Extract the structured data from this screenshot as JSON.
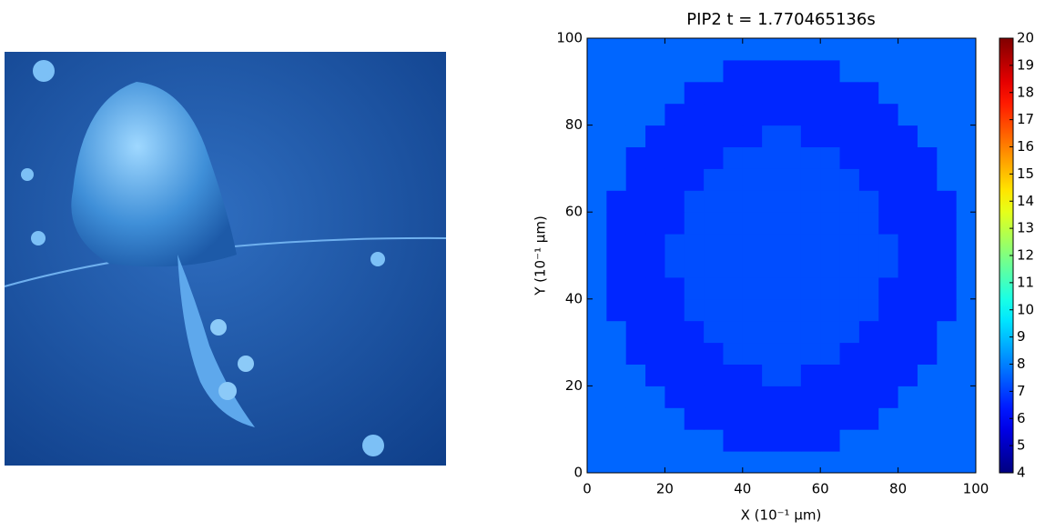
{
  "chart_data": {
    "type": "heatmap",
    "title": "PIP2  t = 1.770465136s",
    "x_label": "X (10⁻¹ μm)",
    "y_label": "Y (10⁻¹ μm)",
    "colormap": "jet",
    "xlim": [
      0,
      100
    ],
    "ylim": [
      0,
      100
    ],
    "xticks": [
      0,
      20,
      40,
      60,
      80,
      100
    ],
    "yticks": [
      0,
      20,
      40,
      60,
      80,
      100
    ],
    "colorbar": {
      "lim": [
        4,
        20
      ],
      "ticks": [
        4,
        5,
        6,
        7,
        8,
        9,
        10,
        11,
        12,
        13,
        14,
        15,
        16,
        17,
        18,
        19,
        20
      ]
    },
    "z": [
      [
        7.6,
        7.6,
        7.6,
        7.6,
        7.6,
        7.6,
        7.6,
        7.6,
        7.6,
        7.6,
        7.6,
        7.6,
        7.6,
        7.6,
        7.6,
        7.6,
        7.6,
        7.6,
        7.6,
        7.6
      ],
      [
        7.6,
        7.6,
        7.6,
        7.6,
        7.6,
        7.6,
        7.6,
        6.6,
        6.6,
        6.6,
        6.6,
        6.6,
        6.6,
        7.6,
        7.6,
        7.6,
        7.6,
        7.6,
        7.6,
        7.6
      ],
      [
        7.6,
        7.6,
        7.6,
        7.6,
        7.6,
        6.6,
        6.6,
        6.6,
        6.6,
        6.6,
        6.6,
        6.6,
        6.6,
        6.6,
        6.6,
        7.6,
        7.6,
        7.6,
        7.6,
        7.6
      ],
      [
        7.6,
        7.6,
        7.6,
        7.6,
        6.6,
        6.6,
        6.6,
        6.6,
        6.6,
        6.6,
        6.6,
        6.6,
        6.6,
        6.6,
        6.6,
        6.6,
        7.6,
        7.6,
        7.6,
        7.6
      ],
      [
        7.6,
        7.6,
        7.6,
        6.6,
        6.6,
        6.6,
        6.6,
        6.6,
        6.6,
        7.2,
        7.2,
        6.6,
        6.6,
        6.6,
        6.6,
        6.6,
        6.6,
        7.6,
        7.6,
        7.6
      ],
      [
        7.6,
        7.6,
        6.6,
        6.6,
        6.6,
        6.6,
        6.6,
        7.2,
        7.2,
        7.2,
        7.2,
        7.2,
        7.2,
        6.6,
        6.6,
        6.6,
        6.6,
        6.6,
        7.6,
        7.6
      ],
      [
        7.6,
        7.6,
        6.6,
        6.6,
        6.6,
        6.6,
        7.2,
        7.2,
        7.2,
        7.2,
        7.2,
        7.2,
        7.2,
        7.2,
        6.6,
        6.6,
        6.6,
        6.6,
        7.6,
        7.6
      ],
      [
        7.6,
        6.6,
        6.6,
        6.6,
        6.6,
        7.2,
        7.2,
        7.2,
        7.2,
        7.2,
        7.2,
        7.2,
        7.2,
        7.2,
        7.2,
        6.6,
        6.6,
        6.6,
        6.6,
        7.6
      ],
      [
        7.6,
        6.6,
        6.6,
        6.6,
        6.6,
        7.2,
        7.2,
        7.2,
        7.2,
        7.2,
        7.2,
        7.2,
        7.2,
        7.2,
        7.2,
        6.6,
        6.6,
        6.6,
        6.6,
        7.6
      ],
      [
        7.6,
        6.6,
        6.6,
        6.6,
        7.2,
        7.2,
        7.2,
        7.2,
        7.2,
        7.2,
        7.2,
        7.2,
        7.2,
        7.2,
        7.2,
        7.2,
        6.6,
        6.6,
        6.6,
        7.6
      ],
      [
        7.6,
        6.6,
        6.6,
        6.6,
        7.2,
        7.2,
        7.2,
        7.2,
        7.2,
        7.2,
        7.2,
        7.2,
        7.2,
        7.2,
        7.2,
        7.2,
        6.6,
        6.6,
        6.6,
        7.6
      ],
      [
        7.6,
        6.6,
        6.6,
        6.6,
        6.6,
        7.2,
        7.2,
        7.2,
        7.2,
        7.2,
        7.2,
        7.2,
        7.2,
        7.2,
        7.2,
        6.6,
        6.6,
        6.6,
        6.6,
        7.6
      ],
      [
        7.6,
        6.6,
        6.6,
        6.6,
        6.6,
        7.2,
        7.2,
        7.2,
        7.2,
        7.2,
        7.2,
        7.2,
        7.2,
        7.2,
        7.2,
        6.6,
        6.6,
        6.6,
        6.6,
        7.6
      ],
      [
        7.6,
        7.6,
        6.6,
        6.6,
        6.6,
        6.6,
        7.2,
        7.2,
        7.2,
        7.2,
        7.2,
        7.2,
        7.2,
        7.2,
        6.6,
        6.6,
        6.6,
        6.6,
        7.6,
        7.6
      ],
      [
        7.6,
        7.6,
        6.6,
        6.6,
        6.6,
        6.6,
        6.6,
        7.2,
        7.2,
        7.2,
        7.2,
        7.2,
        7.2,
        6.6,
        6.6,
        6.6,
        6.6,
        6.6,
        7.6,
        7.6
      ],
      [
        7.6,
        7.6,
        7.6,
        6.6,
        6.6,
        6.6,
        6.6,
        6.6,
        6.6,
        7.2,
        7.2,
        6.6,
        6.6,
        6.6,
        6.6,
        6.6,
        6.6,
        7.6,
        7.6,
        7.6
      ],
      [
        7.6,
        7.6,
        7.6,
        7.6,
        6.6,
        6.6,
        6.6,
        6.6,
        6.6,
        6.6,
        6.6,
        6.6,
        6.6,
        6.6,
        6.6,
        6.6,
        7.6,
        7.6,
        7.6,
        7.6
      ],
      [
        7.6,
        7.6,
        7.6,
        7.6,
        7.6,
        6.6,
        6.6,
        6.6,
        6.6,
        6.6,
        6.6,
        6.6,
        6.6,
        6.6,
        6.6,
        7.6,
        7.6,
        7.6,
        7.6,
        7.6
      ],
      [
        7.6,
        7.6,
        7.6,
        7.6,
        7.6,
        7.6,
        7.6,
        6.6,
        6.6,
        6.6,
        6.6,
        6.6,
        6.6,
        7.6,
        7.6,
        7.6,
        7.6,
        7.6,
        7.6,
        7.6
      ],
      [
        7.6,
        7.6,
        7.6,
        7.6,
        7.6,
        7.6,
        7.6,
        7.6,
        7.6,
        7.6,
        7.6,
        7.6,
        7.6,
        7.6,
        7.6,
        7.6,
        7.6,
        7.6,
        7.6,
        7.6
      ]
    ]
  }
}
